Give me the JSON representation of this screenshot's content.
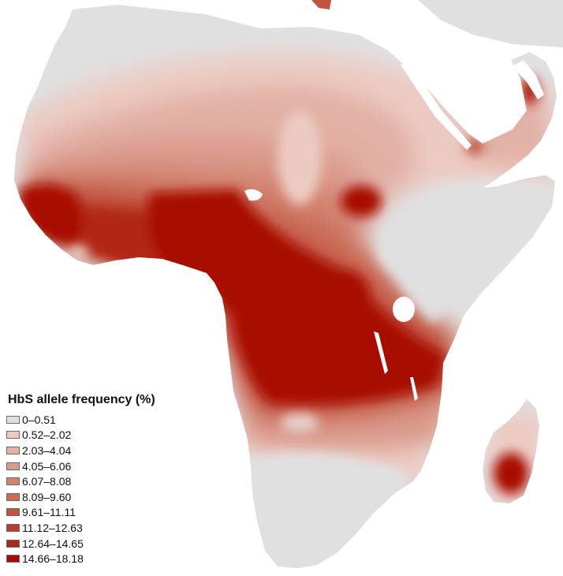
{
  "map": {
    "legend_title": "HbS allele frequency (%)",
    "legend": [
      {
        "label": "0–0.51",
        "color": "#e0e0e0"
      },
      {
        "label": "0.52–2.02",
        "color": "#eccac2"
      },
      {
        "label": "2.03–4.04",
        "color": "#e2b0a4"
      },
      {
        "label": "4.05–6.06",
        "color": "#da9a8b"
      },
      {
        "label": "6.07–8.08",
        "color": "#d2836f"
      },
      {
        "label": "8.09–9.60",
        "color": "#ca6c57"
      },
      {
        "label": "9.61–11.11",
        "color": "#c1533f"
      },
      {
        "label": "11.12–12.63",
        "color": "#b93c2b"
      },
      {
        "label": "12.64–14.65",
        "color": "#b12619"
      },
      {
        "label": "14.66–18.18",
        "color": "#a80a05"
      }
    ],
    "ocean_color": "#ffffff"
  }
}
